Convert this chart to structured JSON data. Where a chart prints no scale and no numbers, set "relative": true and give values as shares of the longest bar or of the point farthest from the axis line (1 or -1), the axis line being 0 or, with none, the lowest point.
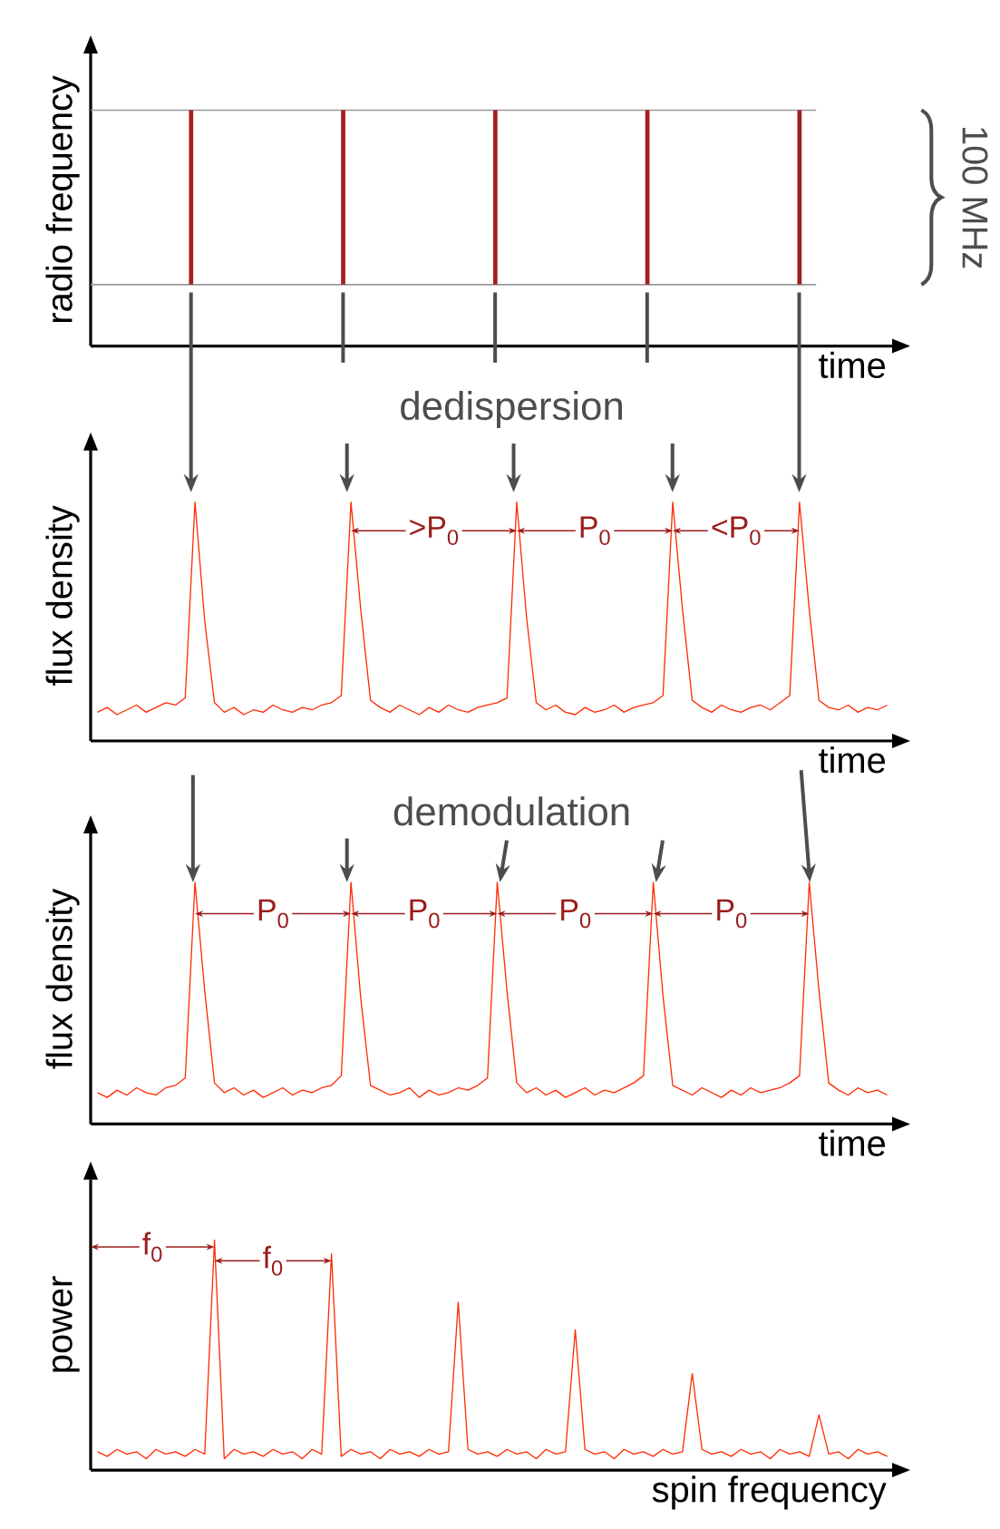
{
  "chart_data": [
    {
      "type": "bar",
      "relative": true,
      "ylabel": "radio frequency",
      "xlabel": "time",
      "color": "#a31f1f",
      "categories": [
        null,
        null,
        null,
        null,
        null
      ],
      "values": [
        1,
        1,
        1,
        1,
        1
      ],
      "ref_lines": [
        {
          "axis": "y",
          "value": 0,
          "color": "#9a9a9a"
        },
        {
          "axis": "y",
          "value": 1,
          "color": "#9a9a9a"
        }
      ],
      "annotations": [
        "100 MHz"
      ]
    },
    {
      "type": "line",
      "relative": true,
      "ylabel": "flux density",
      "xlabel": "time",
      "color": "#ff2a00",
      "categories": [
        null,
        null,
        null,
        null,
        null,
        null,
        null,
        null,
        null,
        null,
        null,
        null,
        null,
        null,
        null,
        null,
        null,
        null,
        null,
        null,
        null,
        null,
        null,
        null,
        null,
        null,
        null,
        null,
        null,
        null,
        null,
        null,
        null,
        null,
        null,
        null,
        null,
        null,
        null,
        null,
        null,
        null,
        null,
        null,
        null,
        null,
        null,
        null,
        null,
        null,
        null,
        null,
        null,
        null,
        null,
        null,
        null,
        null,
        null,
        null,
        null,
        null,
        null,
        null,
        null,
        null,
        null,
        null,
        null,
        null,
        null,
        null,
        null,
        null,
        null,
        null,
        null,
        null,
        null,
        null,
        null,
        null
      ],
      "values": [
        0.12,
        0.14,
        0.11,
        0.13,
        0.15,
        0.12,
        0.14,
        0.16,
        0.15,
        0.18,
        1.0,
        0.5,
        0.16,
        0.12,
        0.14,
        0.11,
        0.13,
        0.12,
        0.15,
        0.13,
        0.12,
        0.14,
        0.13,
        0.15,
        0.16,
        0.19,
        1.0,
        0.55,
        0.17,
        0.14,
        0.12,
        0.15,
        0.13,
        0.11,
        0.14,
        0.12,
        0.15,
        0.13,
        0.12,
        0.14,
        0.15,
        0.16,
        0.18,
        1.0,
        0.52,
        0.16,
        0.13,
        0.15,
        0.12,
        0.11,
        0.14,
        0.12,
        0.13,
        0.15,
        0.12,
        0.14,
        0.15,
        0.16,
        0.19,
        1.0,
        0.55,
        0.17,
        0.14,
        0.12,
        0.15,
        0.13,
        0.12,
        0.14,
        0.15,
        0.13,
        0.16,
        0.19,
        1.0,
        0.55,
        0.17,
        0.14,
        0.13,
        0.15,
        0.12,
        0.14,
        0.13,
        0.15
      ],
      "annotations": [
        "dedispersion",
        ">P$_{0}$",
        "P$_{0}$",
        "<P$_{0}$"
      ]
    },
    {
      "type": "line",
      "relative": true,
      "ylabel": "flux density",
      "xlabel": "time",
      "color": "#ff2a00",
      "categories": [
        null,
        null,
        null,
        null,
        null,
        null,
        null,
        null,
        null,
        null,
        null,
        null,
        null,
        null,
        null,
        null,
        null,
        null,
        null,
        null,
        null,
        null,
        null,
        null,
        null,
        null,
        null,
        null,
        null,
        null,
        null,
        null,
        null,
        null,
        null,
        null,
        null,
        null,
        null,
        null,
        null,
        null,
        null,
        null,
        null,
        null,
        null,
        null,
        null,
        null,
        null,
        null,
        null,
        null,
        null,
        null,
        null,
        null,
        null,
        null,
        null,
        null,
        null,
        null,
        null,
        null,
        null,
        null,
        null,
        null,
        null,
        null,
        null,
        null,
        null,
        null,
        null,
        null,
        null,
        null,
        null,
        null
      ],
      "values": [
        0.13,
        0.11,
        0.14,
        0.12,
        0.15,
        0.13,
        0.12,
        0.15,
        0.16,
        0.19,
        1.0,
        0.55,
        0.17,
        0.13,
        0.15,
        0.12,
        0.14,
        0.11,
        0.13,
        0.15,
        0.12,
        0.14,
        0.13,
        0.15,
        0.16,
        0.2,
        1.0,
        0.52,
        0.16,
        0.14,
        0.12,
        0.13,
        0.15,
        0.11,
        0.14,
        0.12,
        0.13,
        0.15,
        0.14,
        0.16,
        0.19,
        1.0,
        0.55,
        0.17,
        0.13,
        0.15,
        0.12,
        0.14,
        0.11,
        0.13,
        0.15,
        0.12,
        0.14,
        0.13,
        0.15,
        0.17,
        0.2,
        1.0,
        0.53,
        0.16,
        0.14,
        0.12,
        0.15,
        0.13,
        0.11,
        0.14,
        0.12,
        0.15,
        0.13,
        0.14,
        0.15,
        0.17,
        0.2,
        1.0,
        0.55,
        0.17,
        0.14,
        0.12,
        0.15,
        0.13,
        0.14,
        0.12
      ],
      "annotations": [
        "demodulation",
        "P$_{0}$",
        "P$_{0}$",
        "P$_{0}$",
        "P$_{0}$"
      ]
    },
    {
      "type": "line",
      "relative": true,
      "ylabel": "power",
      "xlabel": "spin frequency",
      "color": "#ff2a00",
      "categories": [
        null,
        null,
        null,
        null,
        null,
        null,
        null,
        null,
        null,
        null,
        null,
        null,
        null,
        null,
        null,
        null,
        null,
        null,
        null,
        null,
        null,
        null,
        null,
        null,
        null,
        null,
        null,
        null,
        null,
        null,
        null,
        null,
        null,
        null,
        null,
        null,
        null,
        null,
        null,
        null,
        null,
        null,
        null,
        null,
        null,
        null,
        null,
        null,
        null,
        null,
        null,
        null,
        null,
        null,
        null,
        null,
        null,
        null,
        null,
        null,
        null,
        null,
        null,
        null,
        null,
        null,
        null,
        null,
        null,
        null,
        null,
        null,
        null,
        null,
        null,
        null,
        null,
        null,
        null,
        null,
        null,
        null
      ],
      "values": [
        0.08,
        0.06,
        0.09,
        0.07,
        0.08,
        0.05,
        0.09,
        0.07,
        0.08,
        0.06,
        0.09,
        0.07,
        1.0,
        0.05,
        0.09,
        0.07,
        0.08,
        0.06,
        0.09,
        0.07,
        0.08,
        0.05,
        0.09,
        0.07,
        0.94,
        0.06,
        0.09,
        0.07,
        0.08,
        0.05,
        0.09,
        0.07,
        0.08,
        0.06,
        0.09,
        0.07,
        0.08,
        0.73,
        0.09,
        0.07,
        0.08,
        0.06,
        0.09,
        0.07,
        0.08,
        0.05,
        0.09,
        0.07,
        0.08,
        0.61,
        0.09,
        0.07,
        0.08,
        0.05,
        0.09,
        0.07,
        0.08,
        0.06,
        0.09,
        0.07,
        0.08,
        0.42,
        0.09,
        0.07,
        0.08,
        0.06,
        0.09,
        0.07,
        0.08,
        0.05,
        0.09,
        0.07,
        0.08,
        0.06,
        0.24,
        0.07,
        0.08,
        0.05,
        0.09,
        0.07,
        0.08,
        0.06
      ],
      "annotations": [
        "f$_{0}$",
        "f$_{0}$"
      ]
    }
  ]
}
